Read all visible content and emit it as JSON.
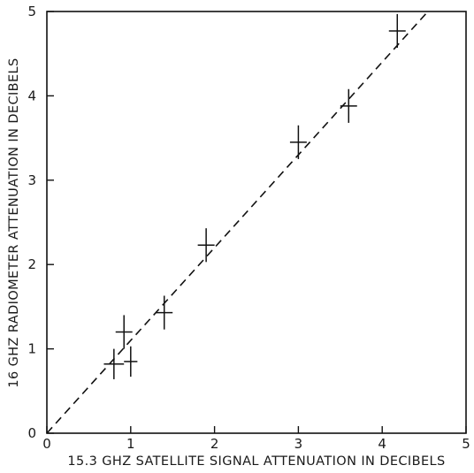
{
  "chart_data": {
    "type": "scatter",
    "xlabel": "15.3 GHZ SATELLITE SIGNAL ATTENUATION IN DECIBELS",
    "ylabel": "16 GHZ RADIOMETER ATTENUATION IN DECIBELS",
    "xlim": [
      0,
      5
    ],
    "ylim": [
      0,
      5
    ],
    "x_ticks": [
      "0",
      "1",
      "2",
      "3",
      "4",
      "5"
    ],
    "y_ticks": [
      "0",
      "1",
      "2",
      "3",
      "4",
      "5"
    ],
    "grid": false,
    "reference_line": {
      "style": "dashed",
      "slope": 1.1,
      "intercept": 0
    },
    "points": [
      {
        "x": 0.8,
        "y": 0.82,
        "x_err": 0.12,
        "y_err": 0.18
      },
      {
        "x": 0.92,
        "y": 1.2,
        "x_err": 0.1,
        "y_err": 0.2
      },
      {
        "x": 1.0,
        "y": 0.85,
        "x_err": 0.08,
        "y_err": 0.18
      },
      {
        "x": 1.4,
        "y": 1.43,
        "x_err": 0.1,
        "y_err": 0.2
      },
      {
        "x": 1.9,
        "y": 2.23,
        "x_err": 0.1,
        "y_err": 0.2
      },
      {
        "x": 3.0,
        "y": 3.45,
        "x_err": 0.1,
        "y_err": 0.2
      },
      {
        "x": 3.6,
        "y": 3.88,
        "x_err": 0.1,
        "y_err": 0.2
      },
      {
        "x": 4.18,
        "y": 4.77,
        "x_err": 0.1,
        "y_err": 0.2
      }
    ]
  }
}
